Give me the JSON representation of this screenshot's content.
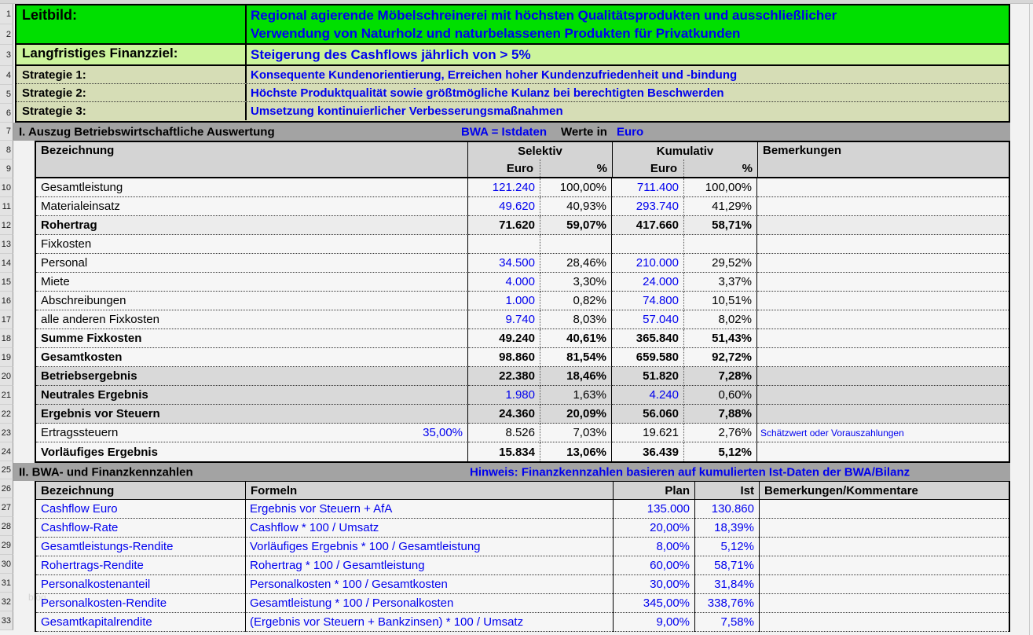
{
  "watermark": "blog",
  "colors": {
    "mission_green": "#00DF00",
    "goal_green": "#CCF49C",
    "strategy_olive": "#D6DDB6",
    "band_gray": "#A3A3A3",
    "header_gray": "#D4D4D4",
    "subtotal_gray": "#D9D9D9",
    "text_blue": "#0000EE"
  },
  "row_numbers": [
    "1",
    "2",
    "3",
    "4",
    "5",
    "6",
    "7",
    "8",
    "9",
    "10",
    "11",
    "12",
    "13",
    "14",
    "15",
    "16",
    "17",
    "18",
    "19",
    "20",
    "21",
    "22",
    "23",
    "24",
    "25",
    "26",
    "27",
    "28",
    "29",
    "30",
    "31",
    "32",
    "33"
  ],
  "mission": {
    "label": "Leitbild:",
    "text_line1": "Regional agierende Möbelschreinerei mit höchsten Qualitätsprodukten und ausschließlicher",
    "text_line2": "Verwendung von Naturholz und naturbelassenen Produkten für Privatkunden",
    "goal_label": "Langfristiges Finanzziel:",
    "goal_text": "Steigerung des Cashflows jährlich von > 5%",
    "strategies": [
      {
        "label": "Strategie 1:",
        "text": "Konsequente Kundenorientierung, Erreichen hoher Kundenzufriedenheit und -bindung"
      },
      {
        "label": "Strategie 2:",
        "text": "Höchste Produktqualität sowie größtmögliche Kulanz bei berechtigten Beschwerden"
      },
      {
        "label": "Strategie 3:",
        "text": "Umsetzung kontinuierlicher Verbesserungsmaßnahmen"
      }
    ]
  },
  "section1": {
    "title": "I. Auszug Betriebswirtschaftliche Auswertung",
    "bwa_note": "BWA = Istdaten",
    "werte_in_label": "Werte in",
    "werte_in_unit": "Euro",
    "headers": {
      "bezeichnung": "Bezeichnung",
      "selektiv": "Selektiv",
      "kumulativ": "Kumulativ",
      "euro": "Euro",
      "prozent": "%",
      "bemerkungen": "Bemerkungen"
    },
    "rows": [
      {
        "label": "Gesamtleistung",
        "sel_eur": "121.240",
        "sel_pct": "100,00%",
        "kum_eur": "711.400",
        "kum_pct": "100,00%",
        "value_blue": true
      },
      {
        "label": "Materialeinsatz",
        "sel_eur": "49.620",
        "sel_pct": "40,93%",
        "kum_eur": "293.740",
        "kum_pct": "41,29%",
        "value_blue": true
      },
      {
        "label": "Rohertrag",
        "sel_eur": "71.620",
        "sel_pct": "59,07%",
        "kum_eur": "417.660",
        "kum_pct": "58,71%",
        "label_bold": true,
        "value_bold": true,
        "bg": "light"
      },
      {
        "label": "Fixkosten",
        "sel_eur": "",
        "sel_pct": "",
        "kum_eur": "",
        "kum_pct": ""
      },
      {
        "label": "Personal",
        "sel_eur": "34.500",
        "sel_pct": "28,46%",
        "kum_eur": "210.000",
        "kum_pct": "29,52%",
        "value_blue": true
      },
      {
        "label": "Miete",
        "sel_eur": "4.000",
        "sel_pct": "3,30%",
        "kum_eur": "24.000",
        "kum_pct": "3,37%",
        "value_blue": true
      },
      {
        "label": "Abschreibungen",
        "sel_eur": "1.000",
        "sel_pct": "0,82%",
        "kum_eur": "74.800",
        "kum_pct": "10,51%",
        "value_blue": true
      },
      {
        "label": "alle anderen Fixkosten",
        "sel_eur": "9.740",
        "sel_pct": "8,03%",
        "kum_eur": "57.040",
        "kum_pct": "8,02%",
        "value_blue": true
      },
      {
        "label": "Summe Fixkosten",
        "sel_eur": "49.240",
        "sel_pct": "40,61%",
        "kum_eur": "365.840",
        "kum_pct": "51,43%",
        "label_bold": true,
        "value_bold": true
      },
      {
        "label": "Gesamtkosten",
        "sel_eur": "98.860",
        "sel_pct": "81,54%",
        "kum_eur": "659.580",
        "kum_pct": "92,72%",
        "label_bold": true,
        "value_bold": true
      },
      {
        "label": "Betriebsergebnis",
        "sel_eur": "22.380",
        "sel_pct": "18,46%",
        "kum_eur": "51.820",
        "kum_pct": "7,28%",
        "label_bold": true,
        "value_bold": true,
        "bg": "gray"
      },
      {
        "label": "Neutrales Ergebnis",
        "sel_eur": "1.980",
        "sel_pct": "1,63%",
        "kum_eur": "4.240",
        "kum_pct": "0,60%",
        "label_bold": true,
        "value_blue": true,
        "bg": "gray"
      },
      {
        "label": "Ergebnis vor Steuern",
        "sel_eur": "24.360",
        "sel_pct": "20,09%",
        "kum_eur": "56.060",
        "kum_pct": "7,88%",
        "label_bold": true,
        "value_bold": true,
        "bg": "gray"
      },
      {
        "label": "Ertragssteuern",
        "rate": "35,00%",
        "sel_eur": "8.526",
        "sel_pct": "7,03%",
        "kum_eur": "19.621",
        "kum_pct": "2,76%",
        "remark": "Schätzwert oder Vorauszahlungen"
      },
      {
        "label": "Vorläufiges Ergebnis",
        "sel_eur": "15.834",
        "sel_pct": "13,06%",
        "kum_eur": "36.439",
        "kum_pct": "5,12%",
        "label_bold": true,
        "value_bold": true
      }
    ]
  },
  "section2": {
    "title": "II. BWA- und Finanzkennzahlen",
    "hinweis": "Hinweis: Finanzkennzahlen basieren auf kumulierten Ist-Daten der BWA/Bilanz",
    "headers": {
      "bezeichnung": "Bezeichnung",
      "formeln": "Formeln",
      "plan": "Plan",
      "ist": "Ist",
      "bemerkungen": "Bemerkungen/Kommentare"
    },
    "rows": [
      {
        "name": "Cashflow Euro",
        "formula": "Ergebnis vor Steuern + AfA",
        "plan": "135.000",
        "ist": "130.860"
      },
      {
        "name": "Cashflow-Rate",
        "formula": "Cashflow * 100 / Umsatz",
        "plan": "20,00%",
        "ist": "18,39%"
      },
      {
        "name": "Gesamtleistungs-Rendite",
        "formula": "Vorläufiges Ergebnis * 100 / Gesamtleistung",
        "plan": "8,00%",
        "ist": "5,12%"
      },
      {
        "name": "Rohertrags-Rendite",
        "formula": "Rohertrag * 100 / Gesamtleistung",
        "plan": "60,00%",
        "ist": "58,71%"
      },
      {
        "name": "Personalkostenanteil",
        "formula": "Personalkosten * 100 / Gesamtkosten",
        "plan": "30,00%",
        "ist": "31,84%"
      },
      {
        "name": "Personalkosten-Rendite",
        "formula": "Gesamtleistung * 100 / Personalkosten",
        "plan": "345,00%",
        "ist": "338,76%"
      },
      {
        "name": "Gesamtkapitalrendite",
        "formula": "(Ergebnis vor Steuern + Bankzinsen) * 100 / Umsatz",
        "plan": "9,00%",
        "ist": "7,58%"
      }
    ]
  }
}
